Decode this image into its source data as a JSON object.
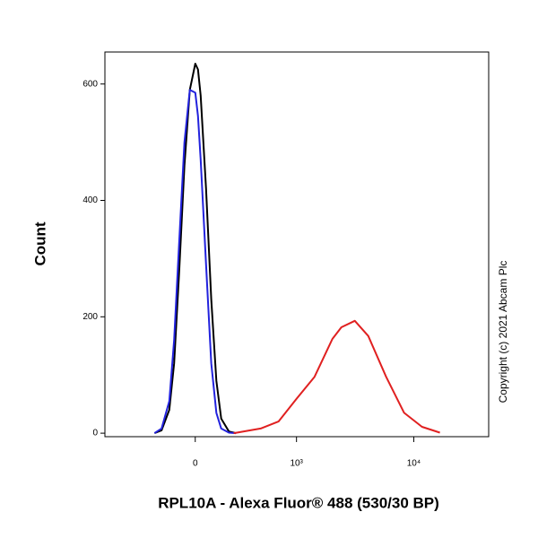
{
  "chart_data": {
    "type": "line",
    "xlabel": "RPL10A - Alexa Fluor® 488 (530/30 BP)",
    "ylabel": "Count",
    "annotation": "Copyright (c) 2021 Abcam Plc",
    "xscale": "biexponential",
    "xlim": [
      -800,
      43000
    ],
    "ylim": [
      -6,
      655
    ],
    "xticks": [
      0,
      {
        "value": 1000,
        "label": "10³"
      },
      {
        "value": 10000,
        "label": "10⁴"
      }
    ],
    "yticks": [
      0,
      200,
      400,
      600
    ],
    "series": [
      {
        "color": "#000000",
        "x": [
          -250,
          -200,
          -150,
          -120,
          -90,
          -60,
          -30,
          0,
          15,
          30,
          60,
          90,
          120,
          150,
          200,
          250
        ],
        "values": [
          0,
          5,
          40,
          120,
          280,
          460,
          590,
          635,
          625,
          580,
          420,
          230,
          90,
          25,
          3,
          0
        ]
      },
      {
        "color": "#2222dd",
        "x": [
          -250,
          -200,
          -150,
          -120,
          -90,
          -60,
          -30,
          0,
          15,
          30,
          60,
          90,
          120,
          150,
          200,
          250
        ],
        "values": [
          0,
          8,
          55,
          160,
          330,
          500,
          590,
          585,
          545,
          470,
          290,
          120,
          35,
          8,
          1,
          0
        ]
      },
      {
        "color": "#e02020",
        "x": [
          233,
          468,
          690,
          1000,
          1434,
          2040,
          2434,
          3167,
          4118,
          5830,
          8290,
          11740,
          16640
        ],
        "values": [
          0,
          8,
          20,
          59,
          97,
          162,
          182,
          193,
          167,
          97,
          35,
          11,
          1
        ]
      }
    ]
  }
}
